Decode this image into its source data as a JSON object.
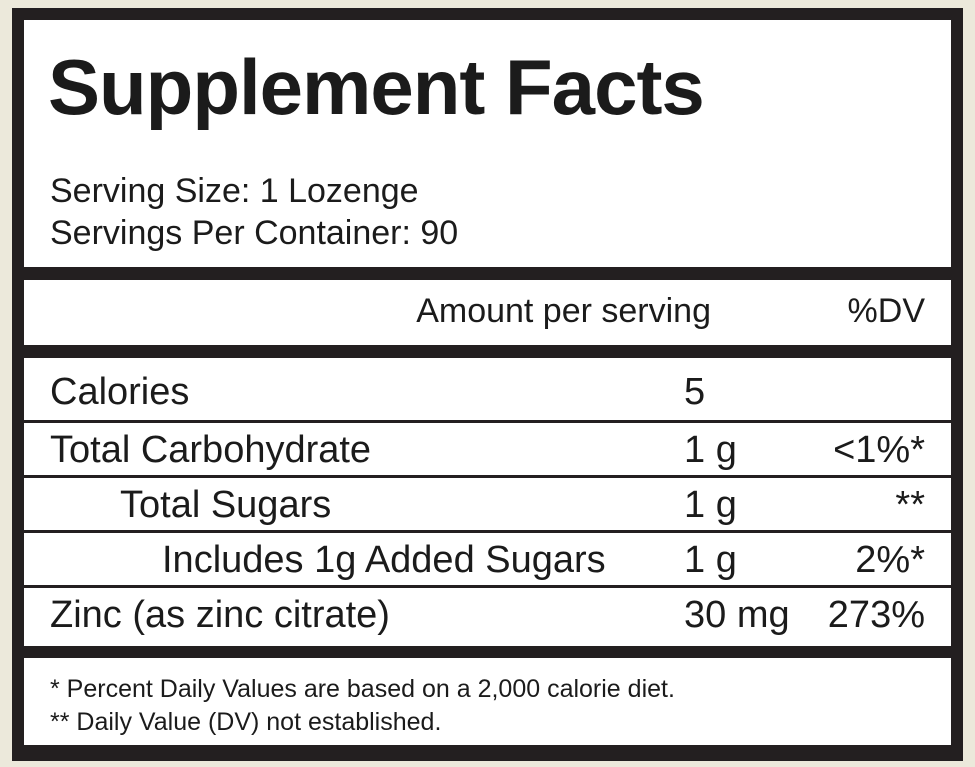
{
  "header": {
    "title": "Supplement Facts",
    "serving_size": "Serving Size: 1 Lozenge",
    "servings_per_container": "Servings Per Container: 90"
  },
  "columns": {
    "amount": "Amount per serving",
    "dv": "%DV"
  },
  "nutrients": [
    {
      "name": "Calories",
      "amount": "5",
      "dv": ""
    },
    {
      "name": "Total Carbohydrate",
      "amount": "1 g",
      "dv": "<1%*"
    },
    {
      "name": "Total Sugars",
      "amount": "1 g",
      "dv": "**"
    },
    {
      "name": "Includes 1g Added Sugars",
      "amount": "1 g",
      "dv": "2%*"
    },
    {
      "name": "Zinc (as zinc citrate)",
      "amount": "30 mg",
      "dv": "273%"
    }
  ],
  "footnotes": {
    "daily_values": "* Percent Daily Values are based on a 2,000 calorie diet.",
    "not_established": "** Daily Value (DV) not established."
  },
  "colors": {
    "border": "#231f20",
    "panel": "#ffffff",
    "background": "#ece9db"
  }
}
